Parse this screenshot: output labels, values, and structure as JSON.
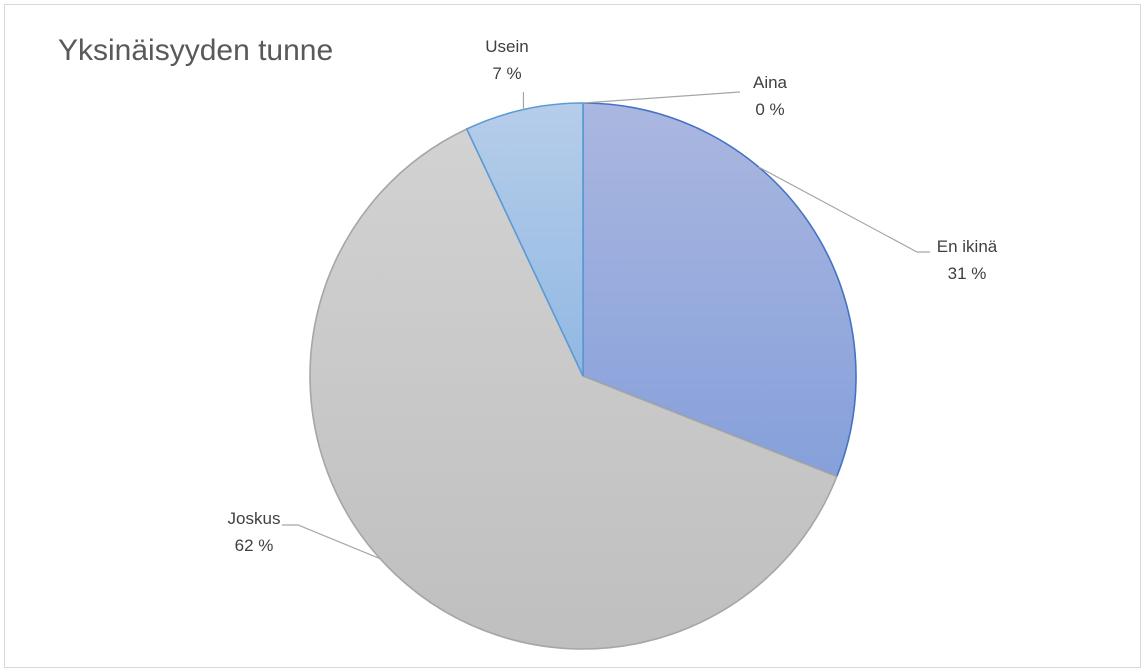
{
  "chart_data": {
    "type": "pie",
    "title": "Yksinäisyyden tunne",
    "slices": [
      {
        "label": "Aina",
        "value": 0,
        "value_label": "0 %",
        "color": "#2f5597"
      },
      {
        "label": "En ikinä",
        "value": 31,
        "value_label": "31 %",
        "color": "#8faadc"
      },
      {
        "label": "Joskus",
        "value": 62,
        "value_label": "62 %",
        "color": "#c4c4c4"
      },
      {
        "label": "Usein",
        "value": 7,
        "value_label": "7 %",
        "color": "#9dc3e6"
      }
    ],
    "legend": "none",
    "data_labels": "outside-with-leader-lines"
  }
}
